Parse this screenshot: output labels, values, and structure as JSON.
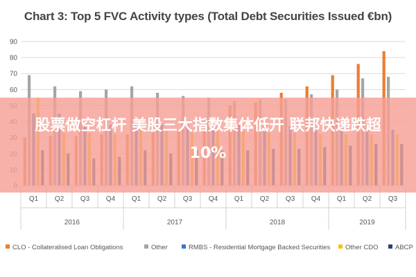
{
  "chart_data": {
    "type": "bar",
    "title": "Chart 3: Top 5 FVC Activity types (Total Debt Securities Issued €bn)",
    "categories": [
      "Q1",
      "Q2",
      "Q3",
      "Q4",
      "Q1",
      "Q2",
      "Q3",
      "Q4",
      "Q1",
      "Q2",
      "Q3",
      "Q4",
      "Q1",
      "Q2",
      "Q3"
    ],
    "groups": [
      {
        "label": "2016",
        "span": 4
      },
      {
        "label": "2017",
        "span": 4
      },
      {
        "label": "2018",
        "span": 4
      },
      {
        "label": "2019",
        "span": 3
      }
    ],
    "ylim": [
      0,
      90
    ],
    "yticks": [
      0,
      10,
      20,
      30,
      40,
      50,
      60,
      70,
      80,
      90
    ],
    "grid": true,
    "legend_position": "bottom",
    "series": [
      {
        "name": "CLO - Collateralised Loan Obligations",
        "color": "#ED7D31",
        "values": [
          30,
          31,
          31,
          32,
          32,
          33,
          35,
          36,
          50,
          52,
          58,
          62,
          69,
          76,
          84
        ]
      },
      {
        "name": "Other",
        "color": "#A5A5A5",
        "values": [
          69,
          62,
          59,
          60,
          62,
          58,
          56,
          55,
          53,
          54,
          54,
          57,
          60,
          67,
          68
        ]
      },
      {
        "name": "RMBS - Residential Mortgage Backed Securities",
        "color": "#4472C4",
        "values": [
          45,
          45,
          37,
          38,
          38,
          38,
          38,
          38,
          38,
          37,
          37,
          36,
          35,
          35,
          35
        ]
      },
      {
        "name": "Other CDO",
        "color": "#FFC000",
        "values": [
          55,
          33,
          33,
          32,
          35,
          34,
          33,
          34,
          34,
          33,
          33,
          32,
          32,
          32,
          32
        ]
      },
      {
        "name": "ABCP",
        "color": "#264478",
        "values": [
          22,
          20,
          17,
          18,
          22,
          20,
          22,
          22,
          22,
          23,
          23,
          24,
          25,
          26,
          26
        ]
      }
    ]
  },
  "overlay": {
    "line1": "股票做空杠杆 美股三大指数集体低开 联邦快递跌超",
    "line2": "10%"
  }
}
